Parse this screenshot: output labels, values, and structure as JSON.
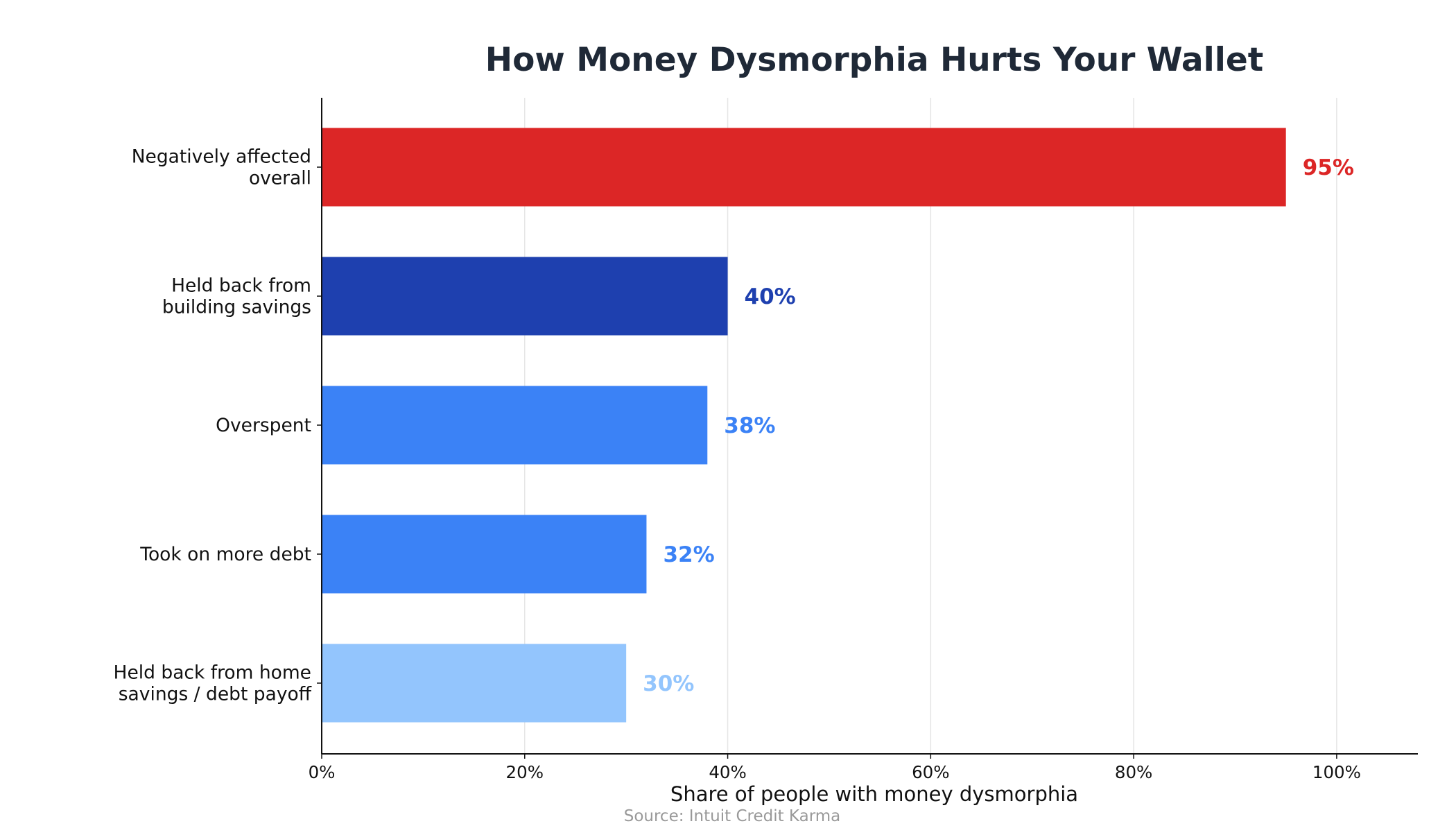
{
  "chart_data": {
    "type": "bar",
    "orientation": "horizontal",
    "title": "How Money Dysmorphia Hurts Your Wallet",
    "xlabel": "Share of people with money dysmorphia",
    "ylabel": "",
    "categories": [
      [
        "Negatively affected",
        "overall"
      ],
      [
        "Held back from",
        "building savings"
      ],
      [
        "Overspent"
      ],
      [
        "Took on more debt"
      ],
      [
        "Held back from home",
        "savings / debt payoff"
      ]
    ],
    "values": [
      95,
      40,
      38,
      32,
      30
    ],
    "value_labels": [
      "95%",
      "40%",
      "38%",
      "32%",
      "30%"
    ],
    "bar_colors": [
      "#dc2626",
      "#1e40af",
      "#3b82f6",
      "#3b82f6",
      "#93c5fd"
    ],
    "xlim": [
      0,
      108
    ],
    "x_ticks": [
      0,
      20,
      40,
      60,
      80,
      100
    ],
    "x_tick_labels": [
      "0%",
      "20%",
      "40%",
      "60%",
      "80%",
      "100%"
    ],
    "grid": "vertical",
    "source": "Source: Intuit Credit Karma"
  },
  "colors": {
    "title": "#1f2937",
    "source": "#999999",
    "axis": "#111111",
    "grid": "#e5e5e5"
  }
}
